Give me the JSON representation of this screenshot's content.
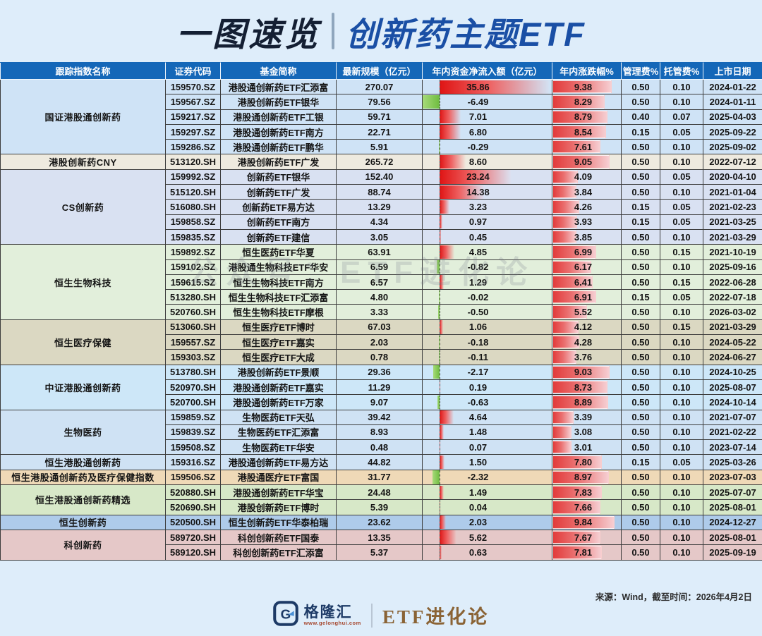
{
  "title": {
    "left": "一图速览",
    "right": "创新药主题ETF"
  },
  "watermark": "公众号：ETF进化论",
  "columns": [
    "跟踪指数名称",
    "证券代码",
    "基金简称",
    "最新规模（亿元）",
    "年内资金净流入额（亿元）",
    "年内涨跌幅%",
    "管理费%",
    "托管费%",
    "上市日期"
  ],
  "colors": {
    "header_bg": "#1467b8",
    "positive_bar": "#df1414",
    "negative_bar": "#7cc24e",
    "change_bar": "#e23b3b"
  },
  "chart_data": {
    "type": "table",
    "title": "一图速览 创新药主题ETF",
    "columns": [
      "跟踪指数名称",
      "证券代码",
      "基金简称",
      "最新规模（亿元）",
      "年内资金净流入额（亿元）",
      "年内涨跌幅%",
      "管理费%",
      "托管费%",
      "上市日期"
    ],
    "groups": [
      {
        "index_name": "国证港股通创新药",
        "color": "#cfe3f6",
        "funds": [
          {
            "code": "159570.SZ",
            "name": "港股通创新药ETF汇添富",
            "scale": "270.07",
            "inflow": "35.86",
            "change": "9.38",
            "mgmt_fee": "0.50",
            "cust_fee": "0.10",
            "list_date": "2024-01-22"
          },
          {
            "code": "159567.SZ",
            "name": "港股创新药ETF银华",
            "scale": "79.56",
            "inflow": "-6.49",
            "change": "8.29",
            "mgmt_fee": "0.50",
            "cust_fee": "0.10",
            "list_date": "2024-01-11"
          },
          {
            "code": "159217.SZ",
            "name": "港股通创新药ETF工银",
            "scale": "59.71",
            "inflow": "7.01",
            "change": "8.79",
            "mgmt_fee": "0.40",
            "cust_fee": "0.07",
            "list_date": "2025-04-03"
          },
          {
            "code": "159297.SZ",
            "name": "港股通创新药ETF南方",
            "scale": "22.71",
            "inflow": "6.80",
            "change": "8.54",
            "mgmt_fee": "0.15",
            "cust_fee": "0.05",
            "list_date": "2025-09-22"
          },
          {
            "code": "159286.SZ",
            "name": "港股通创新药ETF鹏华",
            "scale": "5.91",
            "inflow": "-0.29",
            "change": "7.61",
            "mgmt_fee": "0.50",
            "cust_fee": "0.10",
            "list_date": "2025-09-02"
          }
        ]
      },
      {
        "index_name": "港股创新药CNY",
        "color": "#eeeadf",
        "funds": [
          {
            "code": "513120.SH",
            "name": "港股创新药ETF广发",
            "scale": "265.72",
            "inflow": "8.60",
            "change": "9.05",
            "mgmt_fee": "0.50",
            "cust_fee": "0.10",
            "list_date": "2022-07-12"
          }
        ]
      },
      {
        "index_name": "CS创新药",
        "color": "#d9e1f2",
        "funds": [
          {
            "code": "159992.SZ",
            "name": "创新药ETF银华",
            "scale": "152.40",
            "inflow": "23.24",
            "change": "4.09",
            "mgmt_fee": "0.50",
            "cust_fee": "0.05",
            "list_date": "2020-04-10"
          },
          {
            "code": "515120.SH",
            "name": "创新药ETF广发",
            "scale": "88.74",
            "inflow": "14.38",
            "change": "3.84",
            "mgmt_fee": "0.50",
            "cust_fee": "0.10",
            "list_date": "2021-01-04"
          },
          {
            "code": "516080.SH",
            "name": "创新药ETF易方达",
            "scale": "13.29",
            "inflow": "3.23",
            "change": "4.26",
            "mgmt_fee": "0.15",
            "cust_fee": "0.05",
            "list_date": "2021-02-23"
          },
          {
            "code": "159858.SZ",
            "name": "创新药ETF南方",
            "scale": "4.34",
            "inflow": "0.97",
            "change": "3.93",
            "mgmt_fee": "0.15",
            "cust_fee": "0.05",
            "list_date": "2021-03-25"
          },
          {
            "code": "159835.SZ",
            "name": "创新药ETF建信",
            "scale": "3.05",
            "inflow": "0.45",
            "change": "3.85",
            "mgmt_fee": "0.50",
            "cust_fee": "0.10",
            "list_date": "2021-03-29"
          }
        ]
      },
      {
        "index_name": "恒生生物科技",
        "color": "#e2efdb",
        "funds": [
          {
            "code": "159892.SZ",
            "name": "恒生医药ETF华夏",
            "scale": "63.91",
            "inflow": "4.85",
            "change": "6.99",
            "mgmt_fee": "0.50",
            "cust_fee": "0.15",
            "list_date": "2021-10-19"
          },
          {
            "code": "159102.SZ",
            "name": "港股通生物科技ETF华安",
            "scale": "6.59",
            "inflow": "-0.82",
            "change": "6.17",
            "mgmt_fee": "0.50",
            "cust_fee": "0.10",
            "list_date": "2025-09-16"
          },
          {
            "code": "159615.SZ",
            "name": "恒生生物科技ETF南方",
            "scale": "6.57",
            "inflow": "1.29",
            "change": "6.41",
            "mgmt_fee": "0.50",
            "cust_fee": "0.15",
            "list_date": "2022-06-28"
          },
          {
            "code": "513280.SH",
            "name": "恒生生物科技ETF汇添富",
            "scale": "4.80",
            "inflow": "-0.02",
            "change": "6.91",
            "mgmt_fee": "0.15",
            "cust_fee": "0.05",
            "list_date": "2022-07-18"
          },
          {
            "code": "520760.SH",
            "name": "恒生生物科技ETF摩根",
            "scale": "3.33",
            "inflow": "-0.50",
            "change": "5.52",
            "mgmt_fee": "0.50",
            "cust_fee": "0.10",
            "list_date": "2026-03-02"
          }
        ]
      },
      {
        "index_name": "恒生医疗保健",
        "color": "#dbd8c2",
        "funds": [
          {
            "code": "513060.SH",
            "name": "恒生医疗ETF博时",
            "scale": "67.03",
            "inflow": "1.06",
            "change": "4.12",
            "mgmt_fee": "0.50",
            "cust_fee": "0.15",
            "list_date": "2021-03-29"
          },
          {
            "code": "159557.SZ",
            "name": "恒生医疗ETF嘉实",
            "scale": "2.03",
            "inflow": "-0.18",
            "change": "4.28",
            "mgmt_fee": "0.50",
            "cust_fee": "0.10",
            "list_date": "2024-05-22"
          },
          {
            "code": "159303.SZ",
            "name": "恒生医疗ETF大成",
            "scale": "0.78",
            "inflow": "-0.11",
            "change": "3.76",
            "mgmt_fee": "0.50",
            "cust_fee": "0.10",
            "list_date": "2024-06-27"
          }
        ]
      },
      {
        "index_name": "中证港股通创新药",
        "color": "#cde7f8",
        "funds": [
          {
            "code": "513780.SH",
            "name": "港股创新药ETF景顺",
            "scale": "29.36",
            "inflow": "-2.17",
            "change": "9.03",
            "mgmt_fee": "0.50",
            "cust_fee": "0.10",
            "list_date": "2024-10-25"
          },
          {
            "code": "520970.SH",
            "name": "港股通创新药ETF嘉实",
            "scale": "11.29",
            "inflow": "0.19",
            "change": "8.73",
            "mgmt_fee": "0.50",
            "cust_fee": "0.10",
            "list_date": "2025-08-07"
          },
          {
            "code": "520700.SH",
            "name": "港股通创新药ETF万家",
            "scale": "9.07",
            "inflow": "-0.63",
            "change": "8.89",
            "mgmt_fee": "0.50",
            "cust_fee": "0.10",
            "list_date": "2024-10-14"
          }
        ]
      },
      {
        "index_name": "生物医药",
        "color": "#cfe2f4",
        "funds": [
          {
            "code": "159859.SZ",
            "name": "生物医药ETF天弘",
            "scale": "39.42",
            "inflow": "4.64",
            "change": "3.39",
            "mgmt_fee": "0.50",
            "cust_fee": "0.10",
            "list_date": "2021-07-07"
          },
          {
            "code": "159839.SZ",
            "name": "生物医药ETF汇添富",
            "scale": "8.93",
            "inflow": "1.48",
            "change": "3.08",
            "mgmt_fee": "0.50",
            "cust_fee": "0.10",
            "list_date": "2021-02-22"
          },
          {
            "code": "159508.SZ",
            "name": "生物医药ETF华安",
            "scale": "0.48",
            "inflow": "0.07",
            "change": "3.01",
            "mgmt_fee": "0.50",
            "cust_fee": "0.10",
            "list_date": "2023-07-14"
          }
        ]
      },
      {
        "index_name": "恒生港股通创新药",
        "color": "#cfe2f4",
        "funds": [
          {
            "code": "159316.SZ",
            "name": "港股通创新药ETF易方达",
            "scale": "44.82",
            "inflow": "1.50",
            "change": "7.80",
            "mgmt_fee": "0.15",
            "cust_fee": "0.05",
            "list_date": "2025-03-26"
          }
        ]
      },
      {
        "index_name": "恒生港股通创新药及医疗保健指数",
        "color": "#efd9b7",
        "funds": [
          {
            "code": "159506.SZ",
            "name": "港股通医疗ETF富国",
            "scale": "31.77",
            "inflow": "-2.32",
            "change": "8.97",
            "mgmt_fee": "0.50",
            "cust_fee": "0.10",
            "list_date": "2023-07-03"
          }
        ]
      },
      {
        "index_name": "恒生港股通创新药精选",
        "color": "#d7e8c8",
        "funds": [
          {
            "code": "520880.SH",
            "name": "港股通创新药ETF华宝",
            "scale": "24.48",
            "inflow": "1.49",
            "change": "7.83",
            "mgmt_fee": "0.50",
            "cust_fee": "0.10",
            "list_date": "2025-07-07"
          },
          {
            "code": "520690.SH",
            "name": "港股创新药ETF博时",
            "scale": "5.39",
            "inflow": "0.04",
            "change": "7.66",
            "mgmt_fee": "0.50",
            "cust_fee": "0.10",
            "list_date": "2025-08-01"
          }
        ]
      },
      {
        "index_name": "恒生创新药",
        "color": "#aecbea",
        "funds": [
          {
            "code": "520500.SH",
            "name": "恒生创新药ETF华泰柏瑞",
            "scale": "23.62",
            "inflow": "2.03",
            "change": "9.84",
            "mgmt_fee": "0.50",
            "cust_fee": "0.10",
            "list_date": "2024-12-27"
          }
        ]
      },
      {
        "index_name": "科创新药",
        "color": "#e5c8c8",
        "funds": [
          {
            "code": "589720.SH",
            "name": "科创创新药ETF国泰",
            "scale": "13.35",
            "inflow": "5.62",
            "change": "7.67",
            "mgmt_fee": "0.50",
            "cust_fee": "0.10",
            "list_date": "2025-08-01"
          },
          {
            "code": "589120.SH",
            "name": "科创创新药ETF汇添富",
            "scale": "5.37",
            "inflow": "0.63",
            "change": "7.81",
            "mgmt_fee": "0.50",
            "cust_fee": "0.10",
            "list_date": "2025-09-19"
          }
        ]
      }
    ]
  },
  "footer": {
    "source": "来源：Wind，截至时间：2026年4月2日",
    "brand": "格隆汇",
    "brand_url": "www.gelonghui.com",
    "account": "ETF进化论"
  }
}
